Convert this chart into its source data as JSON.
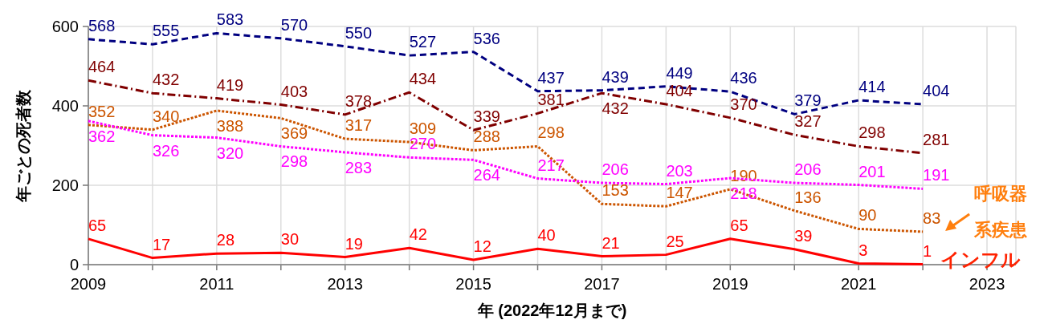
{
  "chart_data": {
    "type": "line",
    "ylabel": "年ごとの死者数",
    "xlabel": "年 (2022年12月まで)",
    "x": [
      2009,
      2010,
      2011,
      2012,
      2013,
      2014,
      2015,
      2016,
      2017,
      2018,
      2019,
      2020,
      2021,
      2022
    ],
    "xlim": [
      2009,
      2023.45
    ],
    "xticks": [
      2009,
      {
        "value": 2010,
        "label": null
      },
      2011,
      {
        "value": 2012,
        "label": null
      },
      2013,
      {
        "value": 2014,
        "label": null
      },
      2015,
      {
        "value": 2016,
        "label": null
      },
      2017,
      {
        "value": 2018,
        "label": null
      },
      2019,
      {
        "value": 2020,
        "label": null
      },
      2021,
      {
        "value": 2022,
        "label": null
      },
      2023
    ],
    "ylim": [
      0,
      600
    ],
    "yticks": [
      0,
      200,
      400,
      600
    ],
    "grid": true,
    "data_labels": true,
    "series": [
      {
        "color": "#000080",
        "line_style": "dashed",
        "values": [
          568,
          555,
          583,
          570,
          550,
          527,
          536,
          437,
          439,
          449,
          436,
          379,
          414,
          404
        ]
      },
      {
        "color": "#800000",
        "line_style": "dashdot",
        "values": [
          464,
          432,
          419,
          403,
          378,
          434,
          339,
          381,
          432,
          404,
          370,
          327,
          298,
          281
        ]
      },
      {
        "name": "呼吸器系疾患",
        "color": "#cc5500",
        "line_style": "dotted",
        "values": [
          352,
          340,
          388,
          369,
          317,
          309,
          288,
          298,
          153,
          147,
          190,
          136,
          90,
          83
        ]
      },
      {
        "color": "#ff00ff",
        "line_style": "dotted",
        "values": [
          362,
          326,
          320,
          298,
          283,
          270,
          264,
          217,
          206,
          203,
          218,
          206,
          201,
          191
        ]
      },
      {
        "name": "インフル",
        "color": "#ff0000",
        "line_style": "solid",
        "values": [
          65,
          17,
          28,
          30,
          19,
          42,
          12,
          40,
          21,
          25,
          65,
          39,
          3,
          1
        ]
      }
    ]
  }
}
